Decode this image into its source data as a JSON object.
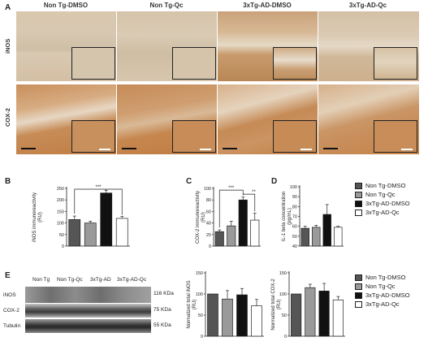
{
  "panel_letters": {
    "A": "A",
    "B": "B",
    "C": "C",
    "D": "D",
    "E": "E"
  },
  "histology": {
    "columns": [
      "Non Tg-DMSO",
      "Non Tg-Qc",
      "3xTg-AD-DMSO",
      "3xTg-AD-Qc"
    ],
    "rows": [
      "iNOS",
      "COX-2"
    ]
  },
  "legend": {
    "items": [
      {
        "label": "Non Tg-DMSO",
        "color": "#555555"
      },
      {
        "label": "Non Tg-Qc",
        "color": "#9a9a9a"
      },
      {
        "label": "3xTg-AD-DMSO",
        "color": "#111111"
      },
      {
        "label": "3xTg-AD-Qc",
        "color": "#ffffff"
      }
    ]
  },
  "western_blot": {
    "lane_labels": [
      "Non Tg",
      "Non Tg-Qc",
      "3xTg-AD",
      "3xTg-AD-Qc"
    ],
    "bands": [
      {
        "name": "iNOS",
        "size": "116 KDa"
      },
      {
        "name": "COX-2",
        "size": "75 KDa"
      },
      {
        "name": "Tubulin",
        "size": "55 KDa"
      }
    ]
  },
  "chart_data": [
    {
      "panel": "B",
      "type": "bar",
      "categories": [
        "Non Tg-DMSO",
        "Non Tg-Qc",
        "3xTg-AD-DMSO",
        "3xTg-AD-Qc"
      ],
      "values": [
        115,
        100,
        230,
        120
      ],
      "errors": [
        15,
        8,
        12,
        8
      ],
      "ylabel": "iNOS immunoreactivity\n(RU)",
      "ylim": [
        0,
        250
      ],
      "yticks": [
        "0",
        "50",
        "100",
        "150",
        "200",
        "250"
      ],
      "significance": "***"
    },
    {
      "panel": "C",
      "type": "bar",
      "categories": [
        "Non Tg-DMSO",
        "Non Tg-Qc",
        "3xTg-AD-DMSO",
        "3xTg-AD-Qc"
      ],
      "values": [
        25,
        35,
        80,
        45
      ],
      "errors": [
        3,
        8,
        5,
        12
      ],
      "ylabel": "COX-2 immunoreactivity\n(RU)",
      "ylim": [
        0,
        100
      ],
      "yticks": [
        "0",
        "20",
        "40",
        "60",
        "80",
        "100"
      ],
      "significance": [
        "***",
        "**"
      ]
    },
    {
      "panel": "D",
      "type": "bar",
      "categories": [
        "Non Tg-DMSO",
        "Non Tg-Qc",
        "3xTg-AD-DMSO",
        "3xTg-AD-Qc"
      ],
      "values": [
        58,
        59,
        72,
        59
      ],
      "errors": [
        2,
        2,
        10,
        1
      ],
      "ylabel": "IL-1 beta concentration\n(pg/mL)",
      "ylim": [
        40,
        100
      ],
      "yticks": [
        "40",
        "50",
        "60",
        "70",
        "80",
        "90",
        "100"
      ]
    },
    {
      "panel": "E1",
      "type": "bar",
      "categories": [
        "Non Tg-DMSO",
        "Non Tg-Qc",
        "3xTg-AD-DMSO",
        "3xTg-AD-Qc"
      ],
      "values": [
        100,
        88,
        98,
        72
      ],
      "errors": [
        0,
        20,
        15,
        15
      ],
      "ylabel": "Normalized total iNOS\n(RU)",
      "ylim": [
        0,
        150
      ],
      "yticks": [
        "0",
        "50",
        "100",
        "150"
      ]
    },
    {
      "panel": "E2",
      "type": "bar",
      "categories": [
        "Non Tg-DMSO",
        "Non Tg-Qc",
        "3xTg-AD-DMSO",
        "3xTg-AD-Qc"
      ],
      "values": [
        100,
        115,
        107,
        86
      ],
      "errors": [
        0,
        8,
        18,
        8
      ],
      "ylabel": "Normalized total COX-2\n(RU)",
      "ylim": [
        0,
        150
      ],
      "yticks": [
        "0",
        "50",
        "100",
        "150"
      ]
    }
  ]
}
